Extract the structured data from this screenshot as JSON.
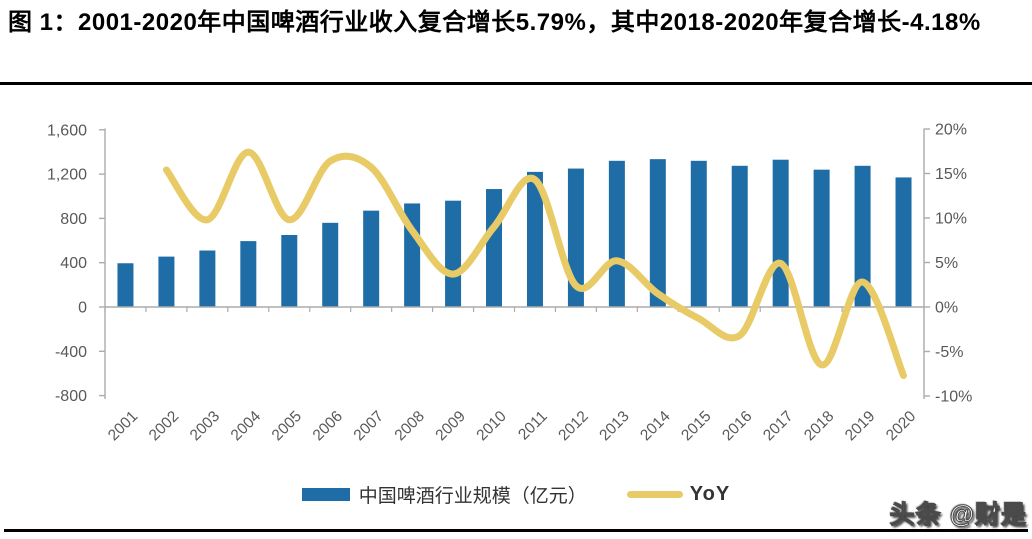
{
  "header": {
    "title": "图 1：2001-2020年中国啤酒行业收入复合增长5.79%，其中2018-2020年复合增长-4.18%"
  },
  "chart_data": {
    "type": "bar+line",
    "categories": [
      "2001",
      "2002",
      "2003",
      "2004",
      "2005",
      "2006",
      "2007",
      "2008",
      "2009",
      "2010",
      "2011",
      "2012",
      "2013",
      "2014",
      "2015",
      "2016",
      "2017",
      "2018",
      "2019",
      "2020"
    ],
    "series": [
      {
        "name": "中国啤酒行业规模（亿元）",
        "type": "bar",
        "axis": "left",
        "color": "#1F6DA6",
        "values": [
          395,
          455,
          510,
          595,
          650,
          760,
          870,
          935,
          960,
          1065,
          1220,
          1250,
          1320,
          1335,
          1320,
          1275,
          1330,
          1240,
          1275,
          1170
        ]
      },
      {
        "name": "YoY",
        "type": "line",
        "axis": "right",
        "color": "#E8CB66",
        "values": [
          null,
          15.4,
          9.8,
          17.4,
          9.8,
          16.4,
          15.7,
          8.6,
          3.7,
          9.0,
          14.3,
          2.4,
          5.2,
          1.5,
          -1.3,
          -3.2,
          4.9,
          -6.5,
          2.8,
          -7.7
        ]
      }
    ],
    "left_axis": {
      "ticks": [
        "1,600",
        "1,200",
        "800",
        "400",
        "0",
        "-400",
        "-800"
      ],
      "tick_values": [
        1600,
        1200,
        800,
        400,
        0,
        -400,
        -800
      ],
      "min": -800,
      "max": 1600
    },
    "right_axis": {
      "ticks": [
        "20%",
        "15%",
        "10%",
        "5%",
        "0%",
        "-5%",
        "-10%"
      ],
      "tick_values": [
        20,
        15,
        10,
        5,
        0,
        -5,
        -10
      ],
      "min": -10,
      "max": 20
    },
    "legend_position": "bottom",
    "grid": false
  },
  "watermark": "头条 @财是"
}
